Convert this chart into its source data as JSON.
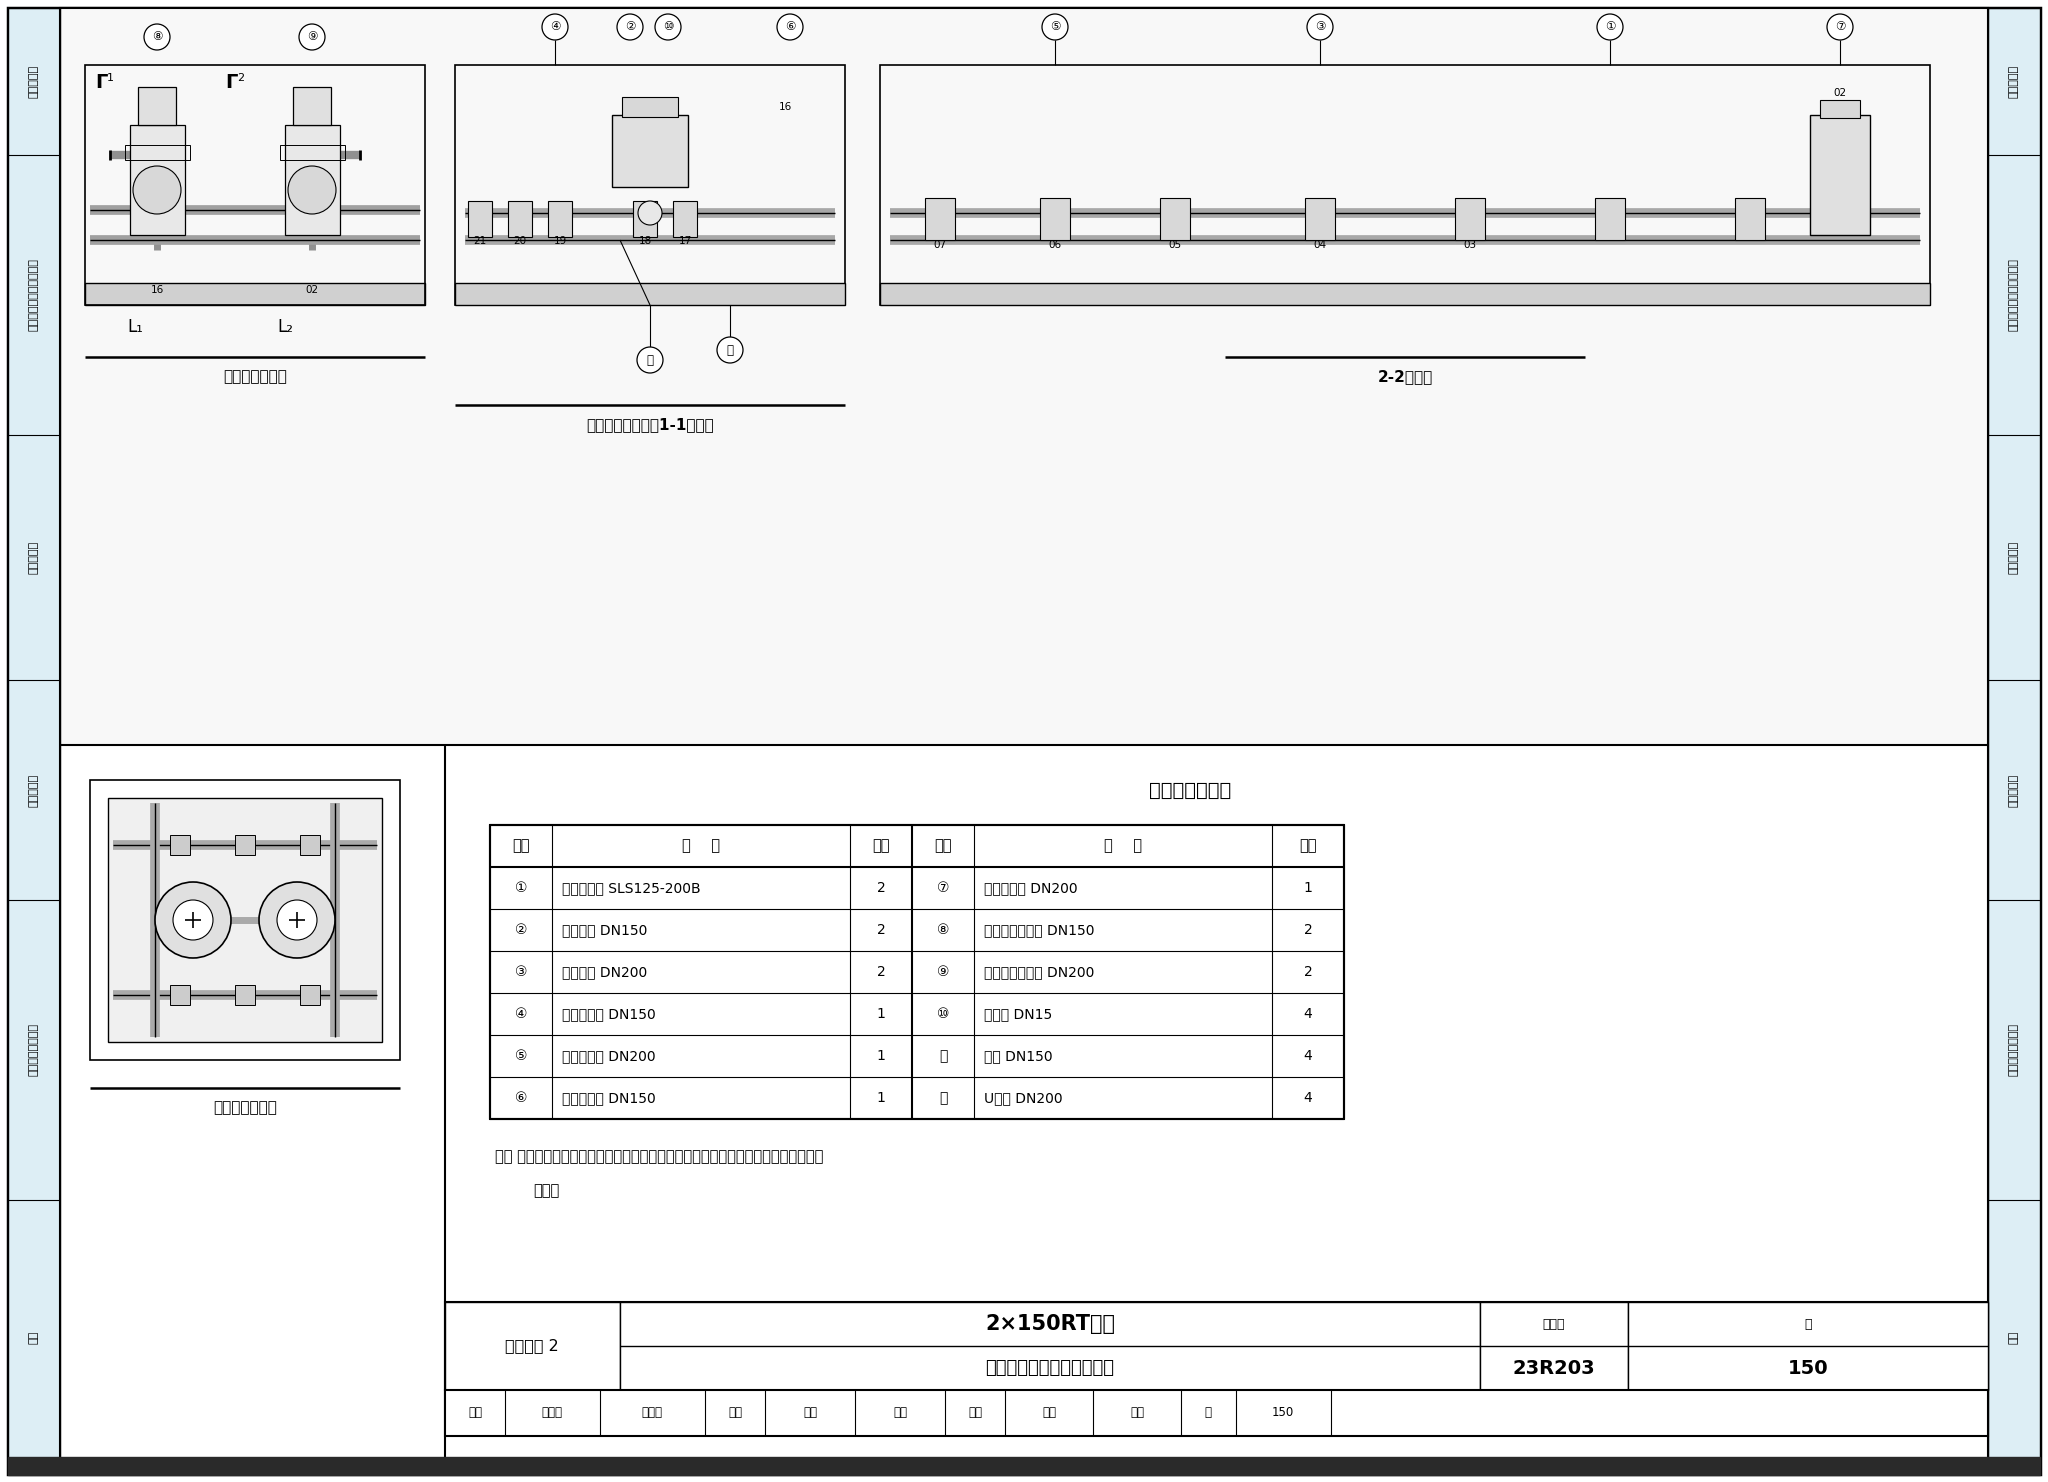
{
  "page_bg": "#ffffff",
  "sidebar_bg": "#ddeef5",
  "figure_number": "23R203",
  "page_number": "150",
  "project_label": "工程实例 2",
  "left_sidebar_sections": [
    [
      0,
      95,
      "附录"
    ],
    [
      95,
      395,
      "机房典型工程实例"
    ],
    [
      395,
      680,
      "建造与安装"
    ],
    [
      680,
      920,
      "整装式机房"
    ],
    [
      920,
      1230,
      "机房附属设备和管道配件"
    ],
    [
      1230,
      1482,
      "模块化机组"
    ]
  ],
  "table_title": "设备材料明细表",
  "table_headers": [
    "序号",
    "名    称",
    "数量",
    "序号",
    "名    称",
    "数量"
  ],
  "table_rows": [
    [
      "①",
      "单吸离心泵 SLS125-200B",
      "2",
      "⑦",
      "角式过滤器 DN200",
      "1"
    ],
    [
      "②",
      "橡胶软接 DN150",
      "2",
      "⑧",
      "法兰式浡轮蝶阀 DN150",
      "2"
    ],
    [
      "③",
      "橡胶软接 DN200",
      "2",
      "⑨",
      "法兰式浡轮蝶阀 DN200",
      "2"
    ],
    [
      "④",
      "消声止回阀 DN150",
      "1",
      "⑩",
      "压力表 DN15",
      "4"
    ],
    [
      "⑤",
      "消声止回阀 DN200",
      "1",
      "⑪",
      "管托 DN150",
      "4"
    ],
    [
      "⑥",
      "角式过滤器 DN150",
      "1",
      "⑫",
      "U型卡 DN200",
      "4"
    ]
  ],
  "note_line1": "注： 装配式制冷机房的各预制构件应优先统一在工厂全自动生产线上进行工厂化加工",
  "note_line2": "制作。",
  "view1_label": "泵组模块主视图",
  "view2_label": "泵组模块侧视图（1-1剖面）",
  "view3_label": "2-2剖面图",
  "view4_label": "泵组模块俧视图",
  "title_main": "2×150RT机房",
  "title_sub": "多功能泵组模块预制加工图",
  "sig_items": [
    "审核",
    "姚珊强",
    "峨珊张",
    "校对",
    "赵黛",
    "主索",
    "设计",
    "杨博",
    "和传",
    "页",
    "150"
  ]
}
